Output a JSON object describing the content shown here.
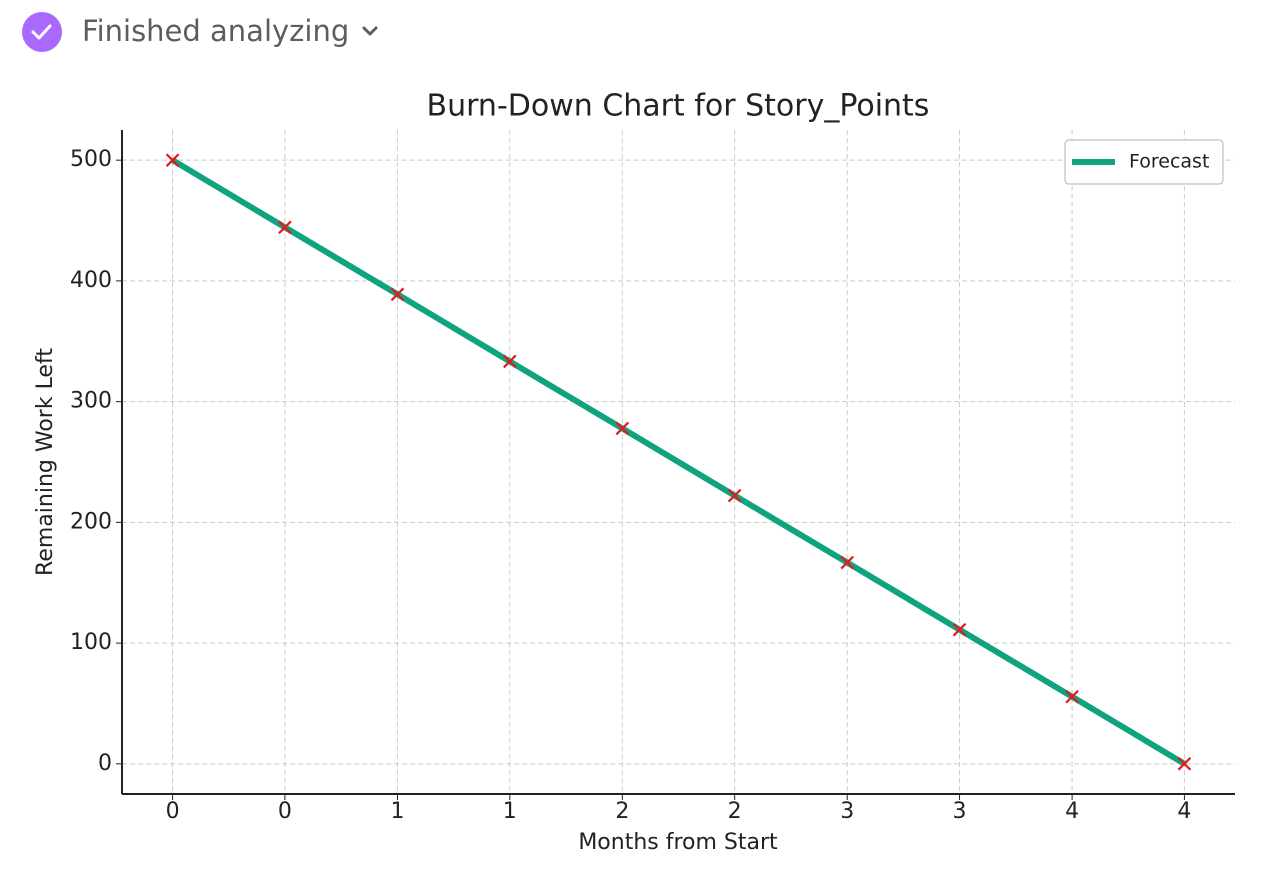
{
  "header": {
    "status": "Finished analyzing"
  },
  "chart_data": {
    "type": "line",
    "title": "Burn-Down Chart for Story_Points",
    "x_label": "Months from Start",
    "y_label": "Remaining Work Left",
    "x": [
      0,
      0.444,
      0.889,
      1.333,
      1.778,
      2.222,
      2.667,
      3.111,
      3.556,
      4
    ],
    "series": [
      {
        "name": "Forecast",
        "color": "#10a37f",
        "marker_color": "#e41a1c",
        "values": [
          500,
          444.4,
          388.9,
          333.3,
          277.8,
          222.2,
          166.7,
          111.1,
          55.6,
          0
        ]
      }
    ],
    "xlim": [
      -0.2,
      4.2
    ],
    "xticks": [
      0,
      {
        "value": 0.444,
        "label": "0"
      },
      {
        "value": 0.889,
        "label": "1"
      },
      {
        "value": 1.333,
        "label": "1"
      },
      {
        "value": 1.778,
        "label": "2"
      },
      {
        "value": 2.222,
        "label": "2"
      },
      {
        "value": 2.667,
        "label": "3"
      },
      {
        "value": 3.111,
        "label": "3"
      },
      {
        "value": 3.556,
        "label": "4"
      },
      4
    ],
    "ylim": [
      -25,
      525
    ],
    "yticks": [
      0,
      100,
      200,
      300,
      400,
      500
    ],
    "grid": true,
    "legend": "upper right"
  }
}
